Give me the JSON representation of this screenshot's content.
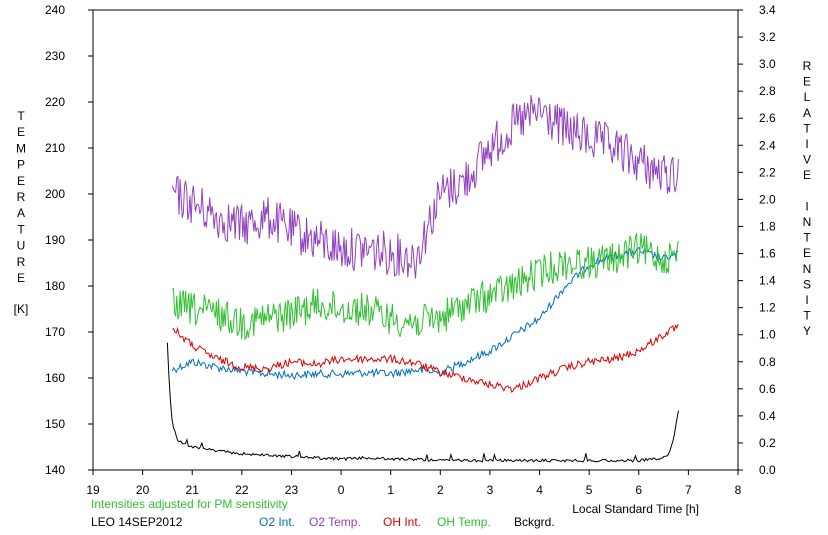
{
  "chart_data": {
    "type": "line",
    "xlabel": "Local Standard Time [h]",
    "ylabel_left": "TEMPERATURE [K]",
    "ylabel_left_letters": [
      "T",
      "E",
      "M",
      "P",
      "E",
      "R",
      "A",
      "T",
      "U",
      "R",
      "E"
    ],
    "ylabel_left_unit": "[K]",
    "ylabel_right_letters": [
      "R",
      "E",
      "L",
      "A",
      "T",
      "I",
      "V",
      "E",
      "",
      "I",
      "N",
      "T",
      "E",
      "N",
      "S",
      "I",
      "T",
      "Y"
    ],
    "x_ticks": [
      "19",
      "20",
      "21",
      "22",
      "23",
      "0",
      "1",
      "2",
      "3",
      "4",
      "5",
      "6",
      "7",
      "8"
    ],
    "x_range": [
      19,
      32
    ],
    "y_left_ticks": [
      "140",
      "150",
      "160",
      "170",
      "180",
      "190",
      "200",
      "210",
      "220",
      "230",
      "240"
    ],
    "y_left_range": [
      140,
      240
    ],
    "y_right_ticks": [
      "0.0",
      "0.2",
      "0.4",
      "0.6",
      "0.8",
      "1.0",
      "1.2",
      "1.4",
      "1.6",
      "1.8",
      "2.0",
      "2.2",
      "2.4",
      "2.6",
      "2.8",
      "3.0",
      "3.2",
      "3.4"
    ],
    "y_right_range": [
      0,
      3.4
    ],
    "note": "Intensities adjusted for PM sensitivity",
    "station": "LEO 14SEP2012",
    "series": [
      {
        "name": "O2 Int.",
        "axis": "right",
        "color": "#0070c0",
        "x": [
          20.6,
          21.0,
          21.5,
          22.0,
          22.5,
          23.0,
          23.5,
          24.0,
          24.5,
          25.0,
          25.5,
          26.0,
          26.5,
          27.0,
          27.5,
          28.0,
          28.5,
          29.0,
          29.5,
          30.0,
          30.5,
          30.8
        ],
        "y": [
          0.74,
          0.8,
          0.76,
          0.73,
          0.71,
          0.7,
          0.71,
          0.71,
          0.72,
          0.71,
          0.74,
          0.72,
          0.8,
          0.88,
          1.0,
          1.12,
          1.35,
          1.52,
          1.58,
          1.62,
          1.56,
          1.6
        ]
      },
      {
        "name": "O2 Temp.",
        "axis": "left",
        "color": "#9040c0",
        "x": [
          20.6,
          21.0,
          21.5,
          22.0,
          22.5,
          23.0,
          23.5,
          24.0,
          24.5,
          25.0,
          25.5,
          26.0,
          26.5,
          27.0,
          27.5,
          28.0,
          28.5,
          29.0,
          29.5,
          30.0,
          30.5,
          30.8
        ],
        "y": [
          200,
          198,
          195,
          193,
          195,
          192,
          190,
          188,
          188,
          187,
          186,
          200,
          203,
          210,
          215,
          218,
          214,
          212,
          210,
          207,
          204,
          205
        ]
      },
      {
        "name": "OH Int.",
        "axis": "right",
        "color": "#e00000",
        "x": [
          20.6,
          21.0,
          21.5,
          22.0,
          22.5,
          23.0,
          23.5,
          24.0,
          24.5,
          25.0,
          25.5,
          26.0,
          26.5,
          27.0,
          27.5,
          28.0,
          28.5,
          29.0,
          29.5,
          30.0,
          30.5,
          30.8
        ],
        "y": [
          1.05,
          0.92,
          0.82,
          0.76,
          0.75,
          0.8,
          0.78,
          0.82,
          0.82,
          0.82,
          0.79,
          0.72,
          0.68,
          0.63,
          0.6,
          0.68,
          0.75,
          0.8,
          0.82,
          0.88,
          1.0,
          1.06
        ]
      },
      {
        "name": "OH Temp.",
        "axis": "left",
        "color": "#30c030",
        "x": [
          20.6,
          21.0,
          21.5,
          22.0,
          22.5,
          23.0,
          23.5,
          24.0,
          24.5,
          25.0,
          25.5,
          26.0,
          26.5,
          27.0,
          27.5,
          28.0,
          28.5,
          29.0,
          29.5,
          30.0,
          30.5,
          30.8
        ],
        "y": [
          176,
          175,
          174,
          172,
          173,
          174,
          176,
          175,
          175,
          173,
          172,
          173,
          176,
          178,
          180,
          183,
          185,
          185,
          186,
          188,
          186,
          187
        ]
      },
      {
        "name": "Bckgrd.",
        "axis": "right",
        "color": "#000000",
        "x": [
          20.5,
          20.55,
          20.6,
          20.7,
          20.9,
          21.2,
          21.5,
          22.0,
          22.5,
          23.0,
          23.5,
          24.0,
          24.5,
          25.0,
          25.5,
          26.0,
          26.5,
          27.0,
          27.5,
          28.0,
          28.5,
          29.0,
          29.5,
          30.0,
          30.5,
          30.6,
          30.7,
          30.8
        ],
        "y": [
          0.94,
          0.55,
          0.35,
          0.22,
          0.18,
          0.16,
          0.14,
          0.12,
          0.11,
          0.1,
          0.09,
          0.08,
          0.09,
          0.08,
          0.08,
          0.07,
          0.07,
          0.07,
          0.07,
          0.07,
          0.07,
          0.07,
          0.07,
          0.07,
          0.09,
          0.12,
          0.22,
          0.44
        ]
      }
    ]
  }
}
